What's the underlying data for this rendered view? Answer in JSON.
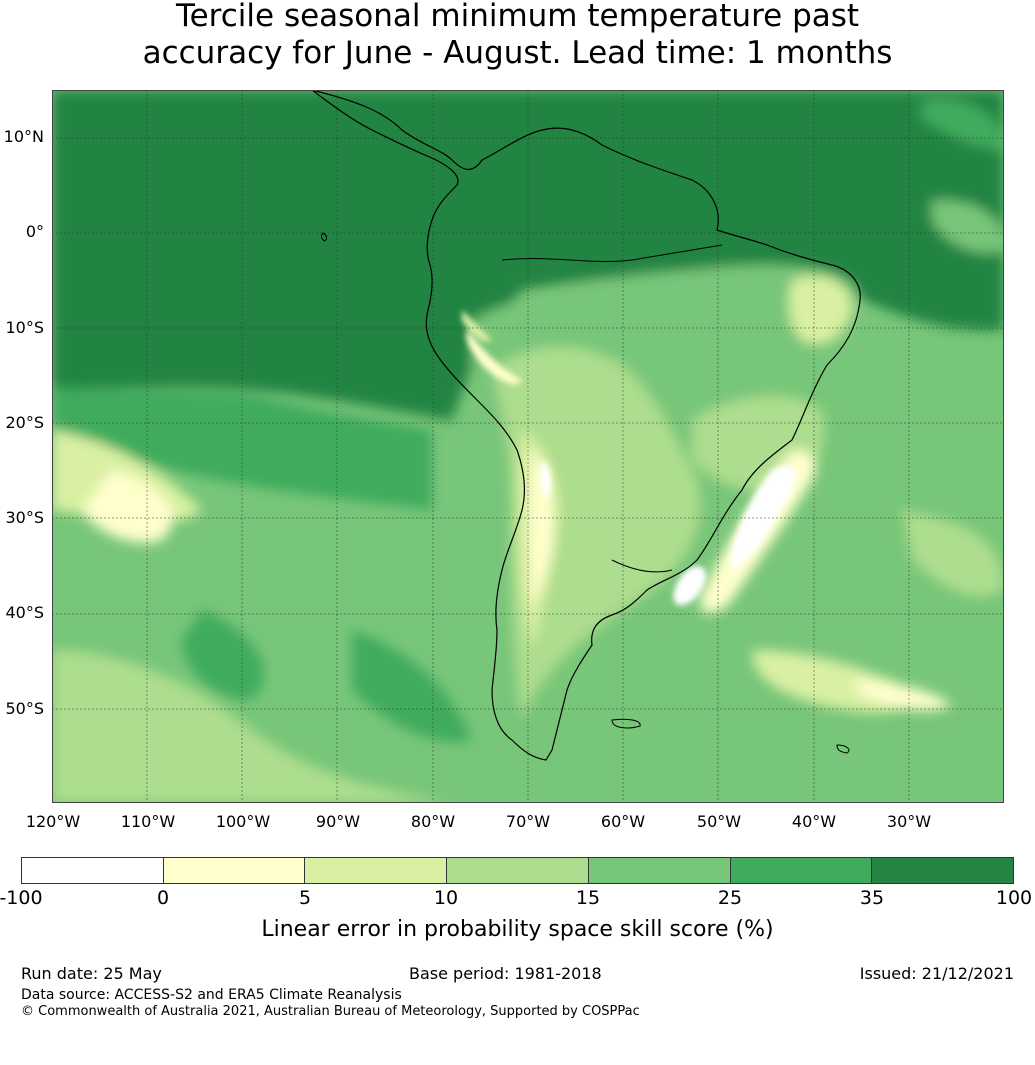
{
  "title_line1": "Tercile seasonal minimum temperature past",
  "title_line2": "accuracy for June - August. Lead time: 1 months",
  "map": {
    "lat_labels": [
      "10°N",
      "0°",
      "10°S",
      "20°S",
      "30°S",
      "40°S",
      "50°S"
    ],
    "lon_labels": [
      "120°W",
      "110°W",
      "100°W",
      "90°W",
      "80°W",
      "70°W",
      "60°W",
      "50°W",
      "40°W",
      "30°W"
    ],
    "lat_values": [
      10,
      0,
      -10,
      -20,
      -30,
      -40,
      -50
    ],
    "lon_values": [
      -120,
      -110,
      -100,
      -90,
      -80,
      -70,
      -60,
      -50,
      -40,
      -30
    ],
    "extent": {
      "lon_min": -120,
      "lon_max": -20,
      "lat_min": -60,
      "lat_max": 15
    },
    "gridlines": true
  },
  "colorbar": {
    "ticks": [
      "-100",
      "0",
      "5",
      "10",
      "15",
      "25",
      "35",
      "100"
    ],
    "colors": [
      "#ffffff",
      "#ffffcc",
      "#d9f0a3",
      "#addd8e",
      "#78c679",
      "#41ab5d",
      "#238443"
    ],
    "label": "Linear error in probability space skill score (%)"
  },
  "footer": {
    "run_date": "Run date: 25 May",
    "base_period": "Base period: 1981-2018",
    "issued": "Issued: 21/12/2021",
    "data_source": "Data source: ACCESS-S2 and ERA5 Climate Reanalysis",
    "copyright": "© Commonwealth of Australia 2021, Australian Bureau of Meteorology, Supported by COSPPac"
  }
}
